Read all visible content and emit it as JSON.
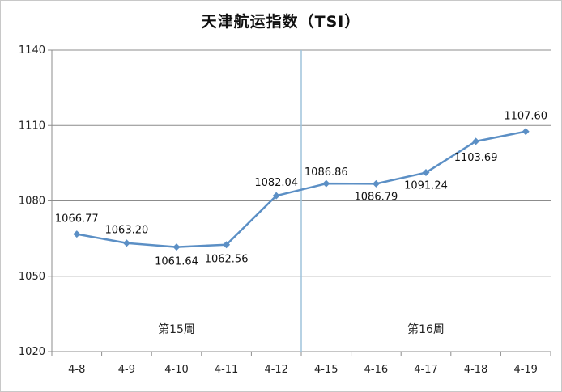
{
  "chart_data": {
    "type": "line",
    "title": "天津航运指数（TSI）",
    "xlabel": "",
    "ylabel": "",
    "categories": [
      "4-8",
      "4-9",
      "4-10",
      "4-11",
      "4-12",
      "4-15",
      "4-16",
      "4-17",
      "4-18",
      "4-19"
    ],
    "series": [
      {
        "values": [
          1066.77,
          1063.2,
          1061.64,
          1062.56,
          1082.04,
          1086.86,
          1086.79,
          1091.24,
          1103.69,
          1107.6
        ],
        "data_labels": [
          "1066.77",
          "1063.20",
          "1061.64",
          "1062.56",
          "1082.04",
          "1086.86",
          "1086.79",
          "1091.24",
          "1103.69",
          "1107.60"
        ]
      }
    ],
    "ylim": [
      1020,
      1140
    ],
    "yticks": [
      1020,
      1050,
      1080,
      1110,
      1140
    ],
    "grid": true,
    "legend": "none",
    "line_color": "#5b8fc5",
    "annotations": {
      "week_15": "第15周",
      "week_16": "第16周"
    }
  }
}
